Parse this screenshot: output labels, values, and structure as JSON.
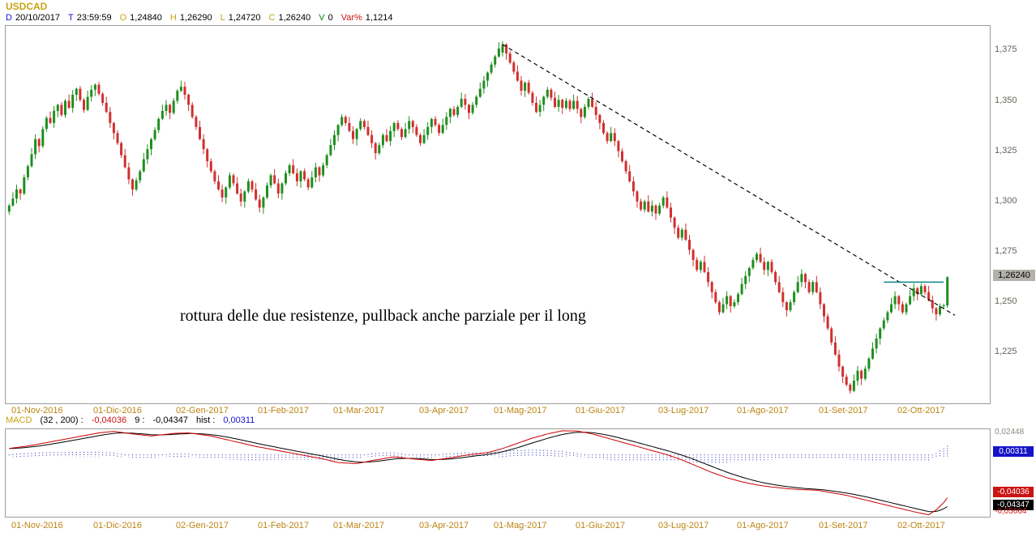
{
  "colors": {
    "background": "#ffffff",
    "candle_up": "#1f8f1f",
    "candle_down": "#d03030",
    "trendline": "#000000",
    "resistance": "#008080",
    "macd_line": "#cc0000",
    "signal_line": "#000000",
    "histogram": "#2424bb",
    "gold_label": "#c8a312",
    "date_label": "#bd8312",
    "axis_text": "#63635a",
    "price_badge_bg": "#b3b2aa",
    "panel_border": "#9c9c9c",
    "macd_max_text": "#8a8a80",
    "macd_min_text": "#cc1414"
  },
  "header": {
    "symbol": "USDCAD",
    "fields": [
      {
        "label": "D",
        "value": "20/10/2017",
        "color": "#1414c8"
      },
      {
        "label": "T",
        "value": "23:59:59",
        "color": "#1414c8"
      },
      {
        "label": "O",
        "value": "1,24840",
        "color": "#c8a312"
      },
      {
        "label": "H",
        "value": "1,26290",
        "color": "#c8a312"
      },
      {
        "label": "L",
        "value": "1,24720",
        "color": "#c8a312"
      },
      {
        "label": "C",
        "value": "1,26240",
        "color": "#c8a312"
      },
      {
        "label": "V",
        "value": "0",
        "color": "#0a8a0a"
      },
      {
        "label": "Var%",
        "value": "1,1214",
        "color": "#cc1414"
      }
    ]
  },
  "macd_header": {
    "name": "MACD",
    "params": "(32 , 200) :",
    "macd_value": "-0,04036",
    "signal_label": "9 :",
    "signal_value": "-0,04347",
    "hist_label": "hist :",
    "hist_value": "0,00311"
  },
  "chart_data": [
    {
      "type": "candlestick",
      "title": "USDCAD daily candlestick chart, Nov 2016 - Oct 2017",
      "ylim": [
        1.1998,
        1.3872
      ],
      "y_axis": [
        {
          "label": "1,375",
          "value": 1.375
        },
        {
          "label": "1,350",
          "value": 1.35
        },
        {
          "label": "1,325",
          "value": 1.325
        },
        {
          "label": "1,300",
          "value": 1.3
        },
        {
          "label": "1,275",
          "value": 1.275
        },
        {
          "label": "1,250",
          "value": 1.25
        },
        {
          "label": "1,225",
          "value": 1.225
        }
      ],
      "x_axis": [
        {
          "label": "01-Nov-2016",
          "index": 0
        },
        {
          "label": "01-Dic-2016",
          "index": 22
        },
        {
          "label": "02-Gen-2017",
          "index": 44
        },
        {
          "label": "01-Feb-2017",
          "index": 66
        },
        {
          "label": "01-Mar-2017",
          "index": 86
        },
        {
          "label": "03-Apr-2017",
          "index": 109
        },
        {
          "label": "01-Mag-2017",
          "index": 129
        },
        {
          "label": "01-Giu-2017",
          "index": 151
        },
        {
          "label": "03-Lug-2017",
          "index": 173
        },
        {
          "label": "01-Ago-2017",
          "index": 194
        },
        {
          "label": "01-Set-2017",
          "index": 216
        },
        {
          "label": "02-Ott-2017",
          "index": 237
        }
      ],
      "last_price": {
        "label": "1,26240",
        "value": 1.2624
      },
      "first_open": 1.295,
      "wick_pattern": [
        0.0009,
        0.0024,
        0.0014,
        0.0031,
        0.0006
      ],
      "closes": [
        1.298,
        1.3015,
        1.306,
        1.304,
        1.312,
        1.3175,
        1.3235,
        1.331,
        1.3275,
        1.336,
        1.3415,
        1.339,
        1.345,
        1.348,
        1.343,
        1.35,
        1.3465,
        1.353,
        1.356,
        1.3505,
        1.3455,
        1.352,
        1.3555,
        1.358,
        1.3535,
        1.349,
        1.3445,
        1.339,
        1.334,
        1.329,
        1.323,
        1.317,
        1.311,
        1.306,
        1.3105,
        1.315,
        1.321,
        1.326,
        1.331,
        1.3355,
        1.341,
        1.345,
        1.348,
        1.344,
        1.35,
        1.355,
        1.357,
        1.353,
        1.348,
        1.342,
        1.337,
        1.331,
        1.326,
        1.32,
        1.315,
        1.31,
        1.306,
        1.302,
        1.307,
        1.313,
        1.309,
        1.304,
        1.3,
        1.305,
        1.31,
        1.306,
        1.301,
        1.297,
        1.302,
        1.308,
        1.313,
        1.309,
        1.304,
        1.309,
        1.314,
        1.318,
        1.314,
        1.31,
        1.315,
        1.311,
        1.307,
        1.312,
        1.317,
        1.313,
        1.318,
        1.323,
        1.328,
        1.333,
        1.338,
        1.342,
        1.339,
        1.335,
        1.331,
        1.336,
        1.34,
        1.337,
        1.333,
        1.329,
        1.324,
        1.328,
        1.333,
        1.33,
        1.335,
        1.339,
        1.336,
        1.332,
        1.336,
        1.34,
        1.337,
        1.333,
        1.329,
        1.333,
        1.337,
        1.341,
        1.338,
        1.334,
        1.338,
        1.342,
        1.346,
        1.343,
        1.347,
        1.351,
        1.348,
        1.344,
        1.348,
        1.352,
        1.356,
        1.36,
        1.364,
        1.368,
        1.372,
        1.376,
        1.378,
        1.3735,
        1.369,
        1.3645,
        1.36,
        1.355,
        1.359,
        1.354,
        1.349,
        1.3445,
        1.348,
        1.352,
        1.3555,
        1.3515,
        1.347,
        1.3505,
        1.3465,
        1.35,
        1.346,
        1.35,
        1.346,
        1.342,
        1.347,
        1.351,
        1.347,
        1.343,
        1.339,
        1.334,
        1.33,
        1.334,
        1.33,
        1.325,
        1.32,
        1.315,
        1.31,
        1.305,
        1.3,
        1.296,
        1.3,
        1.295,
        1.298,
        1.294,
        1.298,
        1.302,
        1.297,
        1.292,
        1.287,
        1.282,
        1.286,
        1.281,
        1.276,
        1.271,
        1.266,
        1.27,
        1.265,
        1.26,
        1.255,
        1.25,
        1.245,
        1.249,
        1.253,
        1.248,
        1.25,
        1.254,
        1.259,
        1.263,
        1.267,
        1.271,
        1.274,
        1.27,
        1.266,
        1.27,
        1.265,
        1.26,
        1.255,
        1.25,
        1.246,
        1.25,
        1.255,
        1.26,
        1.264,
        1.26,
        1.255,
        1.26,
        1.255,
        1.249,
        1.243,
        1.237,
        1.23,
        1.224,
        1.218,
        1.213,
        1.209,
        1.206,
        1.211,
        1.216,
        1.212,
        1.217,
        1.222,
        1.227,
        1.232,
        1.237,
        1.241,
        1.245,
        1.249,
        1.253,
        1.249,
        1.245,
        1.249,
        1.253,
        1.257,
        1.254,
        1.258,
        1.255,
        1.251,
        1.247,
        1.244,
        1.248,
        1.2484,
        1.2624
      ],
      "overrides": {
        "132": [
          1.374,
          1.3795,
          1.372,
          1.378
        ],
        "251": [
          1.2484,
          1.2629,
          1.2472,
          1.2624
        ]
      },
      "trendline": {
        "style": "dashed",
        "from": {
          "index": 132,
          "price": 1.378
        },
        "to": {
          "index": 253,
          "price": 1.2435
        }
      },
      "resistance_line": {
        "price": 1.26,
        "from_index": 234,
        "to_index": 250,
        "color": "#008080"
      },
      "annotation": {
        "text": "rottura delle due resistenze, pullback anche parziale per il long"
      }
    },
    {
      "type": "line",
      "title": "MACD (32, 200) with signal 9 and histogram",
      "ylim": [
        -0.0585,
        0.0255
      ],
      "signal_ema_period": 9,
      "macd_anchors": [
        [
          0,
          0.007
        ],
        [
          6,
          0.01
        ],
        [
          12,
          0.014
        ],
        [
          18,
          0.018
        ],
        [
          24,
          0.022
        ],
        [
          28,
          0.0235
        ],
        [
          33,
          0.021
        ],
        [
          38,
          0.019
        ],
        [
          44,
          0.0215
        ],
        [
          48,
          0.022
        ],
        [
          54,
          0.019
        ],
        [
          60,
          0.014
        ],
        [
          66,
          0.009
        ],
        [
          72,
          0.005
        ],
        [
          78,
          0.001
        ],
        [
          84,
          -0.003
        ],
        [
          88,
          -0.0065
        ],
        [
          93,
          -0.0075
        ],
        [
          98,
          -0.004
        ],
        [
          103,
          -0.001
        ],
        [
          108,
          -0.003
        ],
        [
          113,
          -0.0045
        ],
        [
          118,
          -0.002
        ],
        [
          123,
          0.001
        ],
        [
          128,
          0.003
        ],
        [
          132,
          0.007
        ],
        [
          136,
          0.012
        ],
        [
          140,
          0.017
        ],
        [
          144,
          0.021
        ],
        [
          148,
          0.024
        ],
        [
          152,
          0.0238
        ],
        [
          156,
          0.021
        ],
        [
          160,
          0.017
        ],
        [
          164,
          0.013
        ],
        [
          168,
          0.009
        ],
        [
          172,
          0.005
        ],
        [
          176,
          0.001
        ],
        [
          180,
          -0.004
        ],
        [
          184,
          -0.01
        ],
        [
          188,
          -0.016
        ],
        [
          192,
          -0.021
        ],
        [
          196,
          -0.025
        ],
        [
          200,
          -0.028
        ],
        [
          204,
          -0.03
        ],
        [
          208,
          -0.0315
        ],
        [
          212,
          -0.0325
        ],
        [
          216,
          -0.033
        ],
        [
          220,
          -0.0355
        ],
        [
          224,
          -0.038
        ],
        [
          228,
          -0.0415
        ],
        [
          232,
          -0.045
        ],
        [
          236,
          -0.0485
        ],
        [
          240,
          -0.052
        ],
        [
          243,
          -0.0545
        ],
        [
          246,
          -0.05664
        ],
        [
          248,
          -0.052
        ],
        [
          250,
          -0.045
        ],
        [
          251,
          -0.04036
        ]
      ],
      "axis_labels": {
        "max": {
          "label": "0,02448",
          "value": 0.02448
        },
        "hist": {
          "label": "0,00311",
          "value": 0.00311
        },
        "macd": {
          "label": "-0,04036",
          "value": -0.04036
        },
        "signal": {
          "label": "-0,04347",
          "value": -0.04347
        },
        "min": {
          "label": "-0,05664",
          "value": -0.05664
        }
      }
    }
  ]
}
